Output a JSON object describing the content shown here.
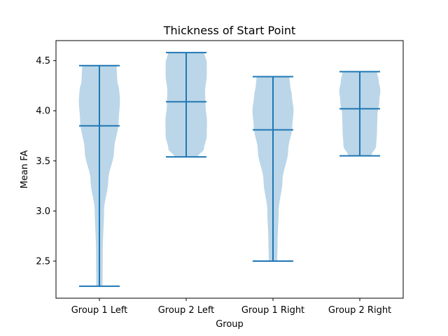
{
  "chart_data": {
    "type": "violin",
    "title": "Thickness of Start Point",
    "xlabel": "Group",
    "ylabel": "Mean FA",
    "ylim": [
      2.13,
      4.7
    ],
    "yticks": [
      2.5,
      3.0,
      3.5,
      4.0,
      4.5
    ],
    "ytick_labels": [
      "2.5",
      "3.0",
      "3.5",
      "4.0",
      "4.5"
    ],
    "categories": [
      "Group 1 Left",
      "Group 2 Left",
      "Group 1 Right",
      "Group 2 Right"
    ],
    "series": [
      {
        "min": 2.25,
        "max": 4.45,
        "median": 3.85,
        "density_profile": [
          [
            2.25,
            0.15
          ],
          [
            2.6,
            0.16
          ],
          [
            3.0,
            0.22
          ],
          [
            3.3,
            0.42
          ],
          [
            3.6,
            0.7
          ],
          [
            3.9,
            0.92
          ],
          [
            4.1,
            0.98
          ],
          [
            4.2,
            0.95
          ],
          [
            4.3,
            0.85
          ],
          [
            4.45,
            0.82
          ]
        ]
      },
      {
        "min": 3.54,
        "max": 4.58,
        "median": 4.09,
        "density_profile": [
          [
            3.54,
            0.55
          ],
          [
            3.62,
            0.85
          ],
          [
            3.75,
            0.98
          ],
          [
            3.9,
            0.99
          ],
          [
            4.05,
            0.92
          ],
          [
            4.2,
            0.9
          ],
          [
            4.35,
            0.98
          ],
          [
            4.48,
            0.98
          ],
          [
            4.58,
            0.86
          ]
        ]
      },
      {
        "min": 2.5,
        "max": 4.34,
        "median": 3.81,
        "density_profile": [
          [
            2.5,
            0.2
          ],
          [
            2.7,
            0.22
          ],
          [
            3.0,
            0.27
          ],
          [
            3.3,
            0.45
          ],
          [
            3.6,
            0.72
          ],
          [
            3.85,
            0.92
          ],
          [
            4.0,
            0.98
          ],
          [
            4.15,
            0.9
          ],
          [
            4.25,
            0.82
          ],
          [
            4.34,
            0.78
          ]
        ]
      },
      {
        "min": 3.55,
        "max": 4.39,
        "median": 4.02,
        "density_profile": [
          [
            3.55,
            0.55
          ],
          [
            3.65,
            0.78
          ],
          [
            3.8,
            0.82
          ],
          [
            3.95,
            0.84
          ],
          [
            4.1,
            0.93
          ],
          [
            4.2,
            0.98
          ],
          [
            4.3,
            0.9
          ],
          [
            4.39,
            0.82
          ]
        ]
      }
    ],
    "colors": {
      "fill": "#1f77b4",
      "line": "#1f77b4"
    },
    "grid": false
  }
}
